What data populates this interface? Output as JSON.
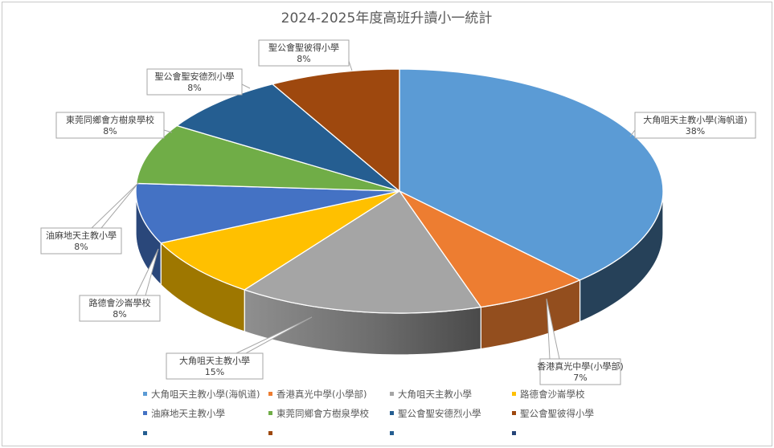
{
  "chart_data": {
    "type": "pie",
    "title": "2024-2025年度高班升讀小一統計",
    "categories": [
      "大角咀天主教小學(海帆道)",
      "香港真光中學(小學部)",
      "大角咀天主教小學",
      "路德會沙崙學校",
      "油麻地天主教小學",
      "東莞同鄉會方樹泉學校",
      "聖公會聖安德烈小學",
      "聖公會聖彼得小學"
    ],
    "values": [
      38,
      7,
      15,
      8,
      8,
      8,
      8,
      8
    ],
    "value_labels": [
      "38%",
      "7%",
      "15%",
      "8%",
      "8%",
      "8%",
      "8%",
      "8%"
    ],
    "colors": [
      "#5B9BD5",
      "#ED7D31",
      "#A5A5A5",
      "#FFC000",
      "#4472C4",
      "#70AD47",
      "#255E91",
      "#9E480E"
    ],
    "legend_position": "bottom",
    "legend_extra_markers": [
      "#255E91",
      "#9E480E",
      "#255E91",
      "#264478"
    ],
    "style": "3d-pie"
  }
}
